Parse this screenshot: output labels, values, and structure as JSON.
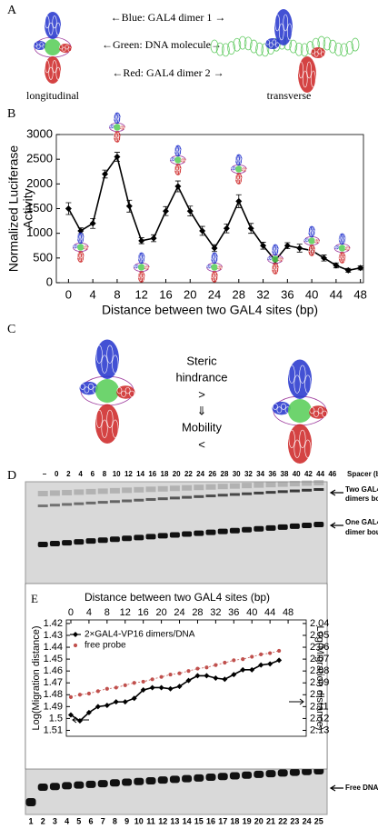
{
  "panel_labels": [
    "A",
    "B",
    "C",
    "D",
    "E"
  ],
  "diagram_a": {
    "lines": [
      "←Blue: GAL4 dimer 1 →",
      "←Green: DNA molecule→",
      "←Red: GAL4 dimer 2 →"
    ],
    "captions": [
      "longitudinal",
      "transverse"
    ]
  },
  "diagram_c": {
    "lines": [
      "Steric",
      "hindrance",
      ">",
      "⇓",
      "Mobility",
      "<"
    ]
  },
  "gel_d": {
    "spacer_labels": [
      "–",
      "0",
      "2",
      "4",
      "6",
      "8",
      "10",
      "12",
      "14",
      "16",
      "18",
      "20",
      "22",
      "24",
      "26",
      "28",
      "30",
      "32",
      "34",
      "36",
      "38",
      "40",
      "42",
      "44",
      "46"
    ],
    "spacer_unit": "Spacer (bp)",
    "band_labels": [
      [
        "Two GAL4-VP16",
        "dimers bound"
      ],
      [
        "One GAL4-VP16",
        "dimer bound"
      ],
      [
        "Free DNA"
      ]
    ],
    "lane_numbers": [
      1,
      2,
      3,
      4,
      5,
      6,
      7,
      8,
      9,
      10,
      11,
      12,
      13,
      14,
      15,
      16,
      17,
      18,
      19,
      20,
      21,
      22,
      23,
      24,
      25
    ]
  },
  "chart_data": [
    {
      "type": "line",
      "xlabel": "Distance between two GAL4 sites (bp)",
      "ylabel": [
        "Normalized Luciferase",
        "Activity"
      ],
      "x": [
        0,
        2,
        4,
        6,
        8,
        10,
        12,
        14,
        16,
        18,
        20,
        22,
        24,
        26,
        28,
        30,
        32,
        34,
        36,
        38,
        40,
        42,
        44,
        46,
        48
      ],
      "series": [
        {
          "color": "#000000",
          "marker": "diamond",
          "values": [
            1500,
            1050,
            1200,
            2200,
            2550,
            1550,
            850,
            900,
            1450,
            1950,
            1450,
            1050,
            700,
            1100,
            1650,
            1100,
            750,
            450,
            750,
            700,
            650,
            500,
            350,
            250,
            300
          ],
          "errors": [
            120,
            60,
            100,
            80,
            90,
            120,
            60,
            70,
            90,
            110,
            100,
            90,
            70,
            90,
            130,
            100,
            70,
            60,
            60,
            80,
            70,
            60,
            50,
            40,
            40
          ]
        }
      ],
      "xlim": [
        -2,
        48.5
      ],
      "xticks": [
        0,
        4,
        8,
        12,
        16,
        20,
        24,
        28,
        32,
        36,
        40,
        44,
        48
      ],
      "ylim": [
        0,
        3000
      ],
      "yticks": [
        0,
        500,
        1000,
        1500,
        2000,
        2500,
        3000
      ]
    },
    {
      "type": "line",
      "xlabel": "Distance between two GAL4 sites (bp)",
      "x_axis_position": "top",
      "ylabel": "Log(Migration distance)",
      "y2label": "Log(Migration distance)",
      "inverted": true,
      "legend": "upper left",
      "x": [
        0,
        2,
        4,
        6,
        8,
        10,
        12,
        14,
        16,
        18,
        20,
        22,
        24,
        26,
        28,
        30,
        32,
        34,
        36,
        38,
        40,
        42,
        44,
        46
      ],
      "series": [
        {
          "name": "2×GAL4-VP16 dimers/DNA",
          "color": "#000000",
          "marker": "diamond",
          "values": [
            1.497,
            1.502,
            1.495,
            1.49,
            1.489,
            1.486,
            1.486,
            1.483,
            1.476,
            1.474,
            1.474,
            1.475,
            1.473,
            1.468,
            1.464,
            1.464,
            1.466,
            1.467,
            1.463,
            1.459,
            1.459,
            1.455,
            1.454,
            1.451
          ]
        },
        {
          "name": "free probe",
          "color": "#c0504d",
          "marker": "circle",
          "axis": "y2",
          "values": [
            2.102,
            2.1,
            2.099,
            2.097,
            2.095,
            2.094,
            2.092,
            2.09,
            2.089,
            2.087,
            2.085,
            2.083,
            2.082,
            2.08,
            2.078,
            2.077,
            2.075,
            2.073,
            2.071,
            2.07,
            2.068,
            2.066,
            2.065,
            2.063
          ]
        }
      ],
      "xlim": [
        -1,
        52
      ],
      "xticks": [
        0,
        4,
        8,
        12,
        16,
        20,
        24,
        28,
        32,
        36,
        40,
        44,
        48
      ],
      "ylim": [
        1.417,
        1.515
      ],
      "yticks": [
        1.42,
        1.43,
        1.44,
        1.45,
        1.46,
        1.47,
        1.48,
        1.49,
        {
          "value": 1.5,
          "label": "1.5"
        },
        1.51
      ],
      "y2lim": [
        2.037,
        2.135
      ],
      "y2ticks": [
        2.04,
        2.05,
        2.06,
        2.07,
        2.08,
        2.09,
        {
          "value": 2.1,
          "label": "2.1"
        },
        2.11,
        2.12,
        2.13
      ]
    }
  ]
}
